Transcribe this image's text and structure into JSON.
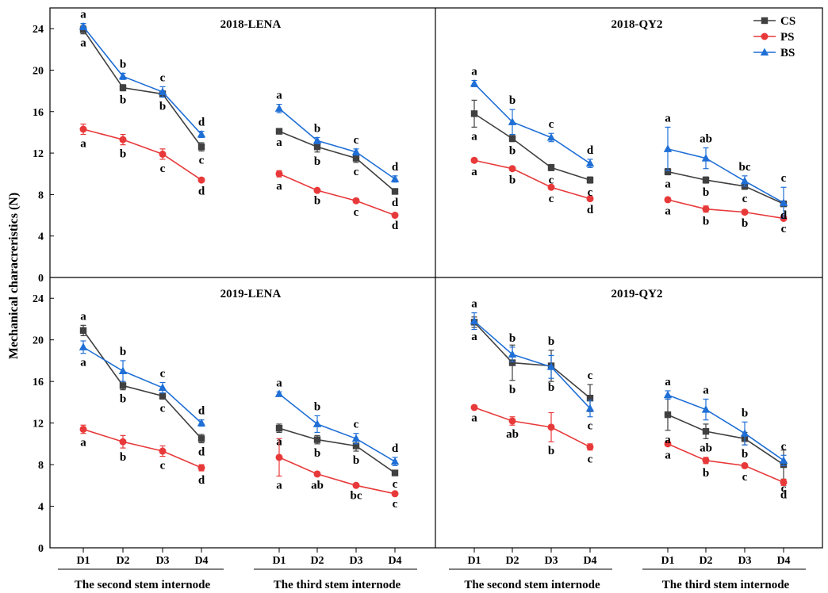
{
  "chart_data": {
    "type": "line",
    "ylabel": "Mechanical characreristics (N)",
    "ylim": [
      0,
      26
    ],
    "yticks": [
      0,
      4,
      8,
      12,
      16,
      20,
      24
    ],
    "categories": [
      "D1",
      "D2",
      "D3",
      "D4"
    ],
    "group_labels": [
      "The second stem internode",
      "The third stem internode",
      "The second stem internode",
      "The third stem internode"
    ],
    "legend": {
      "placement": "top-right",
      "entries": [
        {
          "name": "CS",
          "color": "#404040",
          "marker": "square"
        },
        {
          "name": "PS",
          "color": "#e8393a",
          "marker": "circle"
        },
        {
          "name": "BS",
          "color": "#1f6fd6",
          "marker": "triangle"
        }
      ]
    },
    "panels": [
      {
        "title": "2018-LENA",
        "groups": [
          {
            "series": [
              {
                "name": "CS",
                "values": [
                  23.9,
                  18.3,
                  17.7,
                  12.6
                ],
                "errors": [
                  0.4,
                  0.3,
                  0.3,
                  0.4
                ],
                "letters": [
                  "a",
                  "b",
                  "b",
                  "c"
                ]
              },
              {
                "name": "PS",
                "values": [
                  14.3,
                  13.3,
                  11.9,
                  9.4
                ],
                "errors": [
                  0.5,
                  0.5,
                  0.5,
                  0.2
                ],
                "letters": [
                  "a",
                  "b",
                  "c",
                  "d"
                ]
              },
              {
                "name": "BS",
                "values": [
                  24.2,
                  19.4,
                  17.9,
                  13.8
                ],
                "errors": [
                  0.3,
                  0.3,
                  0.5,
                  0.3
                ],
                "letters": [
                  "a",
                  "b",
                  "c",
                  "d"
                ]
              }
            ]
          },
          {
            "series": [
              {
                "name": "CS",
                "values": [
                  14.1,
                  12.6,
                  11.5,
                  8.3
                ],
                "errors": [
                  0.2,
                  0.5,
                  0.4,
                  0.2
                ],
                "letters": [
                  "a",
                  "b",
                  "c",
                  "d"
                ]
              },
              {
                "name": "PS",
                "values": [
                  10.0,
                  8.4,
                  7.4,
                  6.0
                ],
                "errors": [
                  0.3,
                  0.1,
                  0.2,
                  0.1
                ],
                "letters": [
                  "a",
                  "b",
                  "c",
                  "d"
                ]
              },
              {
                "name": "BS",
                "values": [
                  16.3,
                  13.2,
                  12.1,
                  9.5
                ],
                "errors": [
                  0.4,
                  0.3,
                  0.3,
                  0.3
                ],
                "letters": [
                  "a",
                  "b",
                  "c",
                  "d"
                ]
              }
            ]
          }
        ]
      },
      {
        "title": "2018-QY2",
        "groups": [
          {
            "series": [
              {
                "name": "CS",
                "values": [
                  15.8,
                  13.4,
                  10.6,
                  9.4
                ],
                "errors": [
                  1.3,
                  0.3,
                  0.3,
                  0.3
                ],
                "letters": [
                  "a",
                  "b",
                  "c",
                  "c"
                ]
              },
              {
                "name": "PS",
                "values": [
                  11.3,
                  10.5,
                  8.7,
                  7.6
                ],
                "errors": [
                  0.2,
                  0.2,
                  0.2,
                  0.2
                ],
                "letters": [
                  "a",
                  "b",
                  "c",
                  "d"
                ]
              },
              {
                "name": "BS",
                "values": [
                  18.7,
                  15.0,
                  13.5,
                  11.0
                ],
                "errors": [
                  0.3,
                  1.2,
                  0.4,
                  0.4
                ],
                "letters": [
                  "a",
                  "b",
                  "c",
                  "d"
                ]
              }
            ]
          },
          {
            "series": [
              {
                "name": "CS",
                "values": [
                  10.2,
                  9.4,
                  8.8,
                  7.1
                ],
                "errors": [
                  0.3,
                  0.3,
                  0.3,
                  0.2
                ],
                "letters": [
                  "a",
                  "b",
                  "c",
                  "d"
                ]
              },
              {
                "name": "PS",
                "values": [
                  7.5,
                  6.6,
                  6.3,
                  5.7
                ],
                "errors": [
                  0.2,
                  0.3,
                  0.2,
                  0.1
                ],
                "letters": [
                  "a",
                  "b",
                  "b",
                  "c"
                ]
              },
              {
                "name": "BS",
                "values": [
                  12.4,
                  11.5,
                  9.3,
                  7.2
                ],
                "errors": [
                  2.1,
                  1.0,
                  0.5,
                  1.5
                ],
                "letters": [
                  "a",
                  "ab",
                  "bc",
                  "c"
                ]
              }
            ]
          }
        ]
      },
      {
        "title": "2019-LENA",
        "groups": [
          {
            "series": [
              {
                "name": "CS",
                "values": [
                  20.9,
                  15.6,
                  14.6,
                  10.5
                ],
                "errors": [
                  0.5,
                  0.4,
                  0.3,
                  0.4
                ],
                "letters": [
                  "a",
                  "b",
                  "c",
                  "d"
                ]
              },
              {
                "name": "PS",
                "values": [
                  11.4,
                  10.2,
                  9.3,
                  7.7
                ],
                "errors": [
                  0.4,
                  0.6,
                  0.5,
                  0.3
                ],
                "letters": [
                  "a",
                  "b",
                  "c",
                  "d"
                ]
              },
              {
                "name": "BS",
                "values": [
                  19.3,
                  17.0,
                  15.4,
                  12.0
                ],
                "errors": [
                  0.6,
                  1.0,
                  0.5,
                  0.3
                ],
                "letters": [
                  "a",
                  "b",
                  "c",
                  "d"
                ]
              }
            ]
          },
          {
            "series": [
              {
                "name": "CS",
                "values": [
                  11.5,
                  10.4,
                  9.8,
                  7.2
                ],
                "errors": [
                  0.4,
                  0.4,
                  0.5,
                  0.2
                ],
                "letters": [
                  "a",
                  "b",
                  "b",
                  "c"
                ]
              },
              {
                "name": "PS",
                "values": [
                  8.7,
                  7.1,
                  6.0,
                  5.2
                ],
                "errors": [
                  1.8,
                  0.2,
                  0.1,
                  0.1
                ],
                "letters": [
                  "a",
                  "ab",
                  "bc",
                  "c"
                ]
              },
              {
                "name": "BS",
                "values": [
                  14.8,
                  11.9,
                  10.5,
                  8.3
                ],
                "errors": [
                  0.2,
                  0.8,
                  0.5,
                  0.4
                ],
                "letters": [
                  "a",
                  "b",
                  "c",
                  "d"
                ]
              }
            ]
          }
        ]
      },
      {
        "title": "2019-QY2",
        "groups": [
          {
            "series": [
              {
                "name": "CS",
                "values": [
                  21.7,
                  17.8,
                  17.5,
                  14.4
                ],
                "errors": [
                  0.5,
                  1.7,
                  1.5,
                  1.3
                ],
                "letters": [
                  "a",
                  "b",
                  "b",
                  "c"
                ]
              },
              {
                "name": "PS",
                "values": [
                  13.5,
                  12.2,
                  11.6,
                  9.7
                ],
                "errors": [
                  0.1,
                  0.4,
                  1.4,
                  0.3
                ],
                "letters": [
                  "a",
                  "ab",
                  "b",
                  "c"
                ]
              },
              {
                "name": "BS",
                "values": [
                  21.8,
                  18.6,
                  17.4,
                  13.4
                ],
                "errors": [
                  0.8,
                  0.7,
                  1.1,
                  0.8
                ],
                "letters": [
                  "a",
                  "b",
                  "b",
                  "c"
                ]
              }
            ]
          },
          {
            "series": [
              {
                "name": "CS",
                "values": [
                  12.8,
                  11.2,
                  10.5,
                  8.0
                ],
                "errors": [
                  1.5,
                  0.7,
                  0.6,
                  1.4
                ],
                "letters": [
                  "a",
                  "ab",
                  "b",
                  "c"
                ]
              },
              {
                "name": "PS",
                "values": [
                  10.0,
                  8.4,
                  7.9,
                  6.3
                ],
                "errors": [
                  0.2,
                  0.3,
                  0.2,
                  0.3
                ],
                "letters": [
                  "a",
                  "b",
                  "c",
                  "d"
                ]
              },
              {
                "name": "BS",
                "values": [
                  14.7,
                  13.3,
                  11.0,
                  8.4
                ],
                "errors": [
                  0.4,
                  1.0,
                  1.1,
                  0.5
                ],
                "letters": [
                  "a",
                  "a",
                  "b",
                  "c"
                ]
              }
            ]
          }
        ]
      }
    ]
  }
}
